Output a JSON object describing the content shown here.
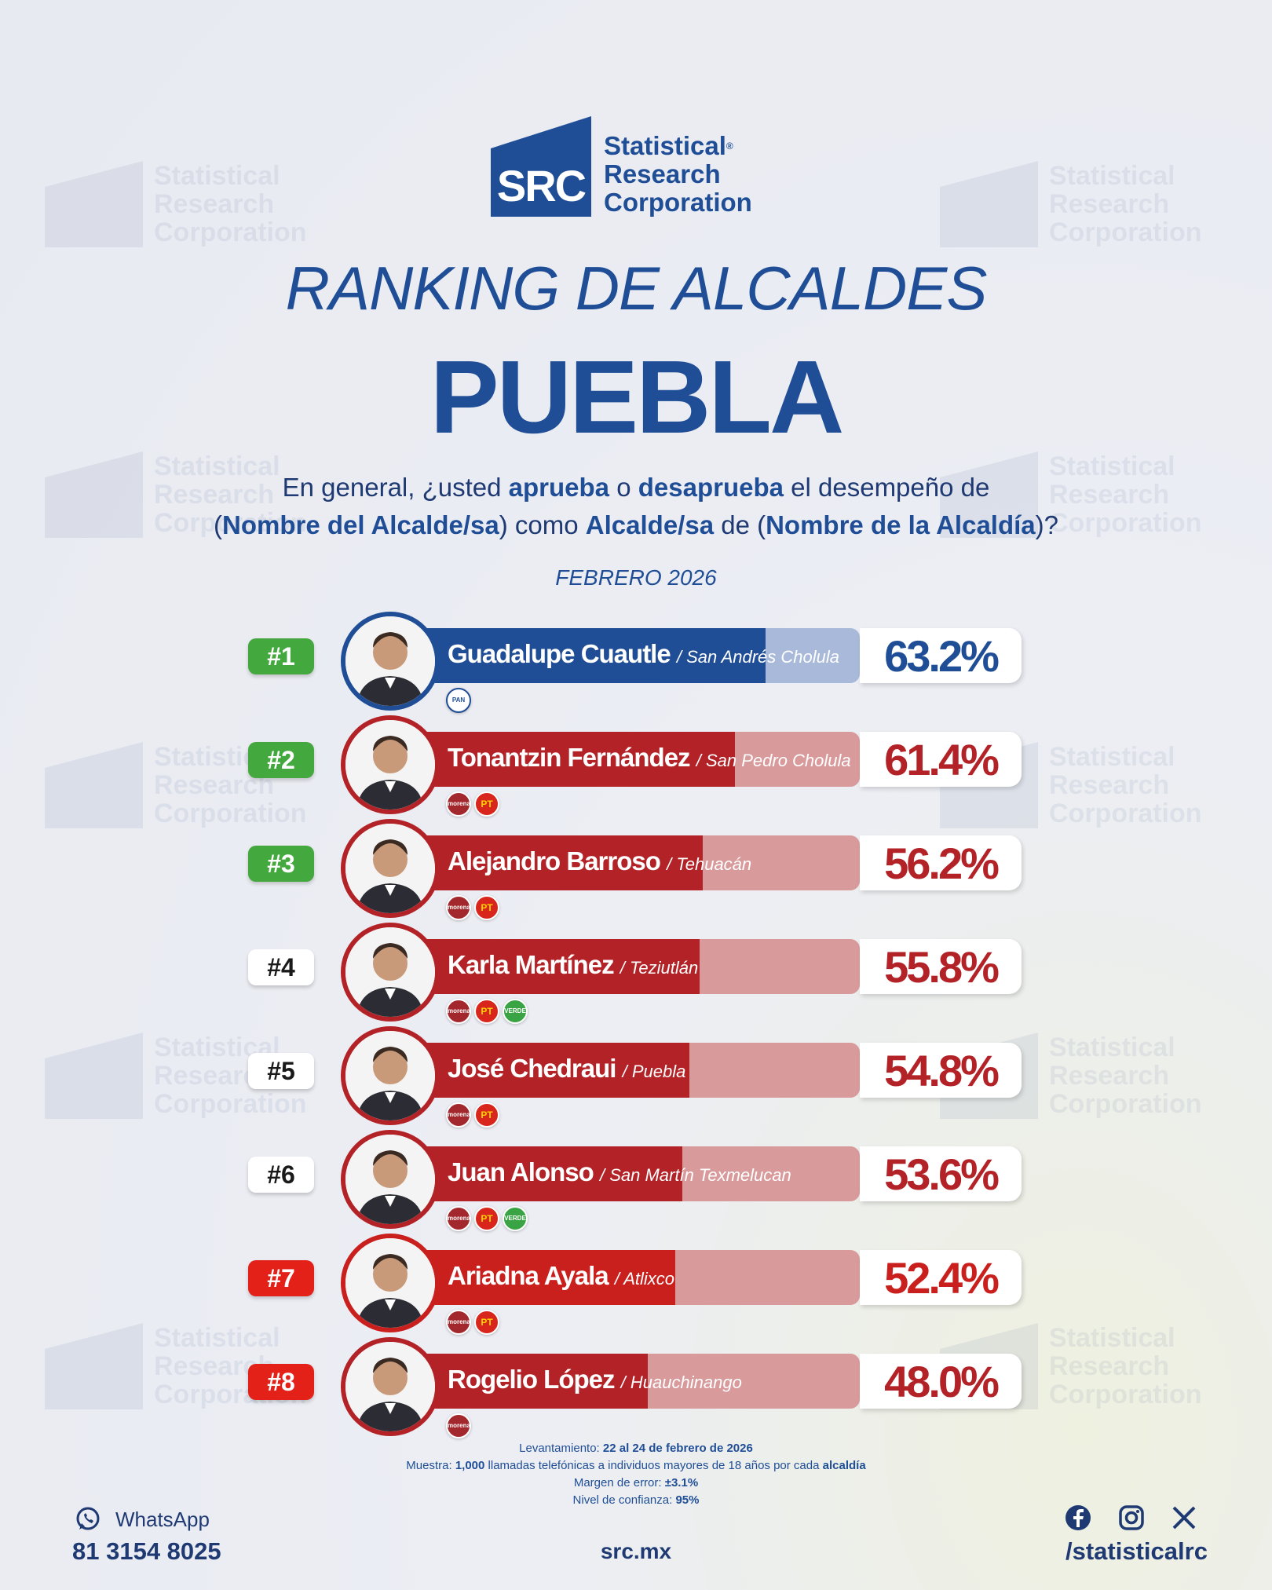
{
  "brand": {
    "abbr": "SRC",
    "line1": "Statistical",
    "line2": "Research",
    "line3": "Corporation",
    "reg": "®"
  },
  "title": "RANKING DE ALCALDES",
  "subtitle": "PUEBLA",
  "question": {
    "p1": "En general, ¿usted ",
    "b1": "aprueba",
    "p2": " o ",
    "b2": "desaprueba",
    "p3": " el desempeño de",
    "p4": "(",
    "b3": "Nombre del Alcalde/sa",
    "p5": ") como ",
    "b4": "Alcalde/sa",
    "p6": " de (",
    "b5": "Nombre de la Alcaldía",
    "p7": ")?"
  },
  "month": "FEBRERO 2026",
  "colors": {
    "pan_blue": "#1f4e96",
    "red": "#b22226",
    "red_light": "#d99a9c",
    "blue_light": "#a9b9d9",
    "green": "#43a83e",
    "bright_red": "#e32119"
  },
  "ranking": [
    {
      "rank": "#1",
      "name": "Guadalupe Cuautle",
      "municipality": "San Andrés Cholula",
      "pct": "63.2%",
      "value": 63.2,
      "rank_style": "green",
      "party_color": "blue",
      "parties": [
        "PAN"
      ]
    },
    {
      "rank": "#2",
      "name": "Tonantzin Fernández",
      "municipality": "San Pedro Cholula",
      "pct": "61.4%",
      "value": 61.4,
      "rank_style": "green",
      "party_color": "red",
      "parties": [
        "morena",
        "PT"
      ]
    },
    {
      "rank": "#3",
      "name": "Alejandro Barroso",
      "municipality": "Tehuacán",
      "pct": "56.2%",
      "value": 56.2,
      "rank_style": "green",
      "party_color": "red",
      "parties": [
        "morena",
        "PT"
      ]
    },
    {
      "rank": "#4",
      "name": "Karla Martínez",
      "municipality": "Teziutlán",
      "pct": "55.8%",
      "value": 55.8,
      "rank_style": "white",
      "party_color": "red",
      "parties": [
        "morena",
        "PT",
        "VERDE"
      ]
    },
    {
      "rank": "#5",
      "name": "José Chedraui",
      "municipality": "Puebla",
      "pct": "54.8%",
      "value": 54.8,
      "rank_style": "white",
      "party_color": "red",
      "parties": [
        "morena",
        "PT"
      ]
    },
    {
      "rank": "#6",
      "name": "Juan Alonso",
      "municipality": "San Martín Texmelucan",
      "pct": "53.6%",
      "value": 53.6,
      "rank_style": "white",
      "party_color": "red",
      "parties": [
        "morena",
        "PT",
        "VERDE"
      ]
    },
    {
      "rank": "#7",
      "name": "Ariadna Ayala",
      "municipality": "Atlixco",
      "pct": "52.4%",
      "value": 52.4,
      "rank_style": "red",
      "party_color": "red",
      "parties": [
        "morena",
        "PT"
      ]
    },
    {
      "rank": "#8",
      "name": "Rogelio López",
      "municipality": "Huauchinango",
      "pct": "48.0%",
      "value": 48.0,
      "rank_style": "red",
      "party_color": "red",
      "parties": [
        "morena"
      ]
    }
  ],
  "footnote": {
    "l1a": "Levantamiento: ",
    "l1b": "22 al 24 de febrero de 2026",
    "l2a": "Muestra: ",
    "l2b": "1,000",
    "l2c": " llamadas telefónicas a individuos mayores de 18 años por cada ",
    "l2d": "alcaldía",
    "l3a": "Margen de error: ",
    "l3b": "±3.1%",
    "l4a": "Nivel de confianza: ",
    "l4b": "95%"
  },
  "contact": {
    "whatsapp_label": "WhatsApp",
    "phone": "81 3154 8025",
    "site": "src.mx",
    "handle": "/statisticalrc"
  },
  "icons": {
    "whatsapp": "whatsapp-icon",
    "facebook": "facebook-icon",
    "instagram": "instagram-icon",
    "x": "x-icon"
  }
}
